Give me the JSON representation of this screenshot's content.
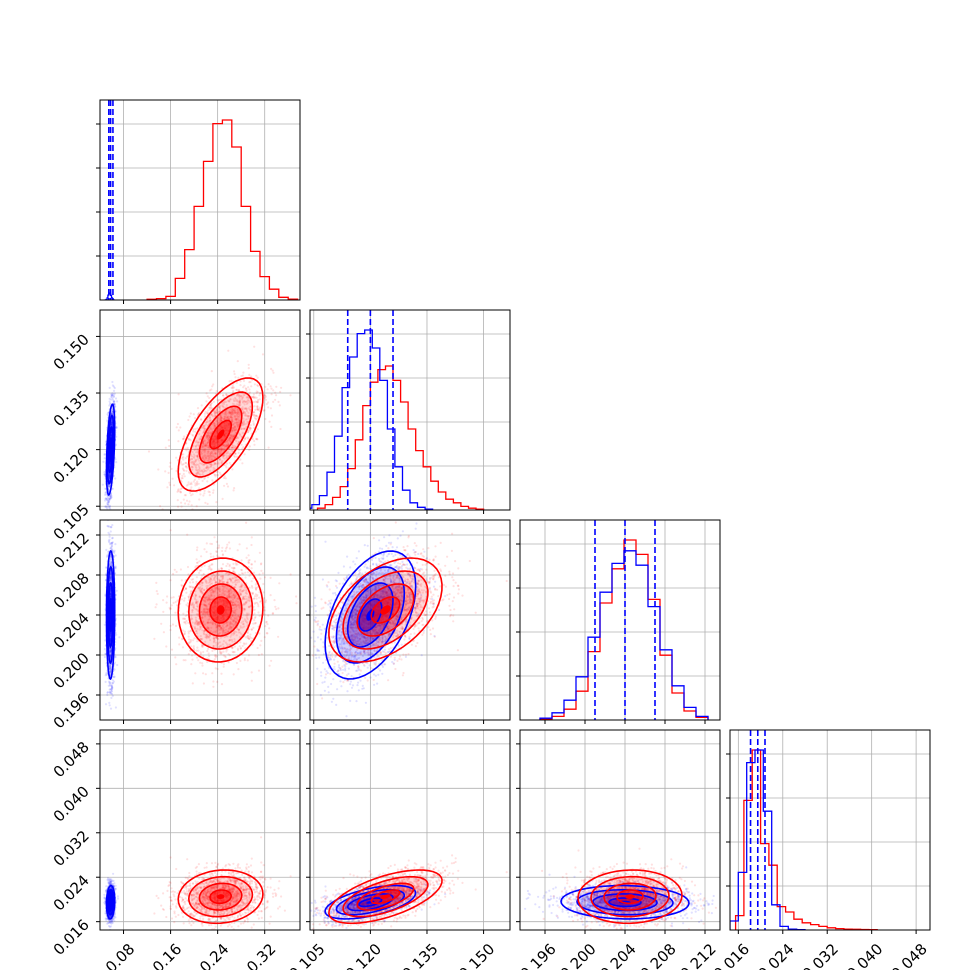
{
  "chart_data": {
    "type": "scatter",
    "variant": "corner-plot",
    "title": "",
    "grid": true,
    "series": [
      {
        "color": "#0000ff"
      },
      {
        "color": "#ff0000"
      }
    ],
    "parameters": [
      {
        "range": [
          0.04,
          0.38
        ],
        "ticks": [
          "0.08",
          "0.16",
          "0.24",
          "0.32"
        ],
        "tick_values": [
          0.08,
          0.16,
          0.24,
          0.32
        ]
      },
      {
        "range": [
          0.104,
          0.157
        ],
        "ticks": [
          "0.105",
          "0.120",
          "0.135",
          "0.150"
        ],
        "tick_values": [
          0.105,
          0.12,
          0.135,
          0.15
        ]
      },
      {
        "range": [
          0.1935,
          0.2135
        ],
        "ticks": [
          "0.196",
          "0.200",
          "0.204",
          "0.208",
          "0.212"
        ],
        "tick_values": [
          0.196,
          0.2,
          0.204,
          0.208,
          0.212
        ]
      },
      {
        "range": [
          0.0145,
          0.0505
        ],
        "ticks": [
          "0.016",
          "0.024",
          "0.032",
          "0.040",
          "0.048"
        ],
        "tick_values": [
          0.016,
          0.024,
          0.032,
          0.04,
          0.048
        ]
      }
    ],
    "marginals": [
      {
        "quantile_lines": [
          0.055,
          0.058,
          0.062
        ],
        "blue_hist": {
          "edges": [
            0.049,
            0.0505,
            0.052,
            0.0535,
            0.055,
            0.0565,
            0.058,
            0.0595,
            0.061,
            0.0625,
            0.064
          ],
          "counts": [
            0.02,
            0.08,
            0.3,
            0.7,
            1.0,
            0.95,
            0.65,
            0.3,
            0.08,
            0.02
          ]
        },
        "red_hist": {
          "edges": [
            0.12,
            0.136,
            0.152,
            0.168,
            0.184,
            0.2,
            0.216,
            0.232,
            0.248,
            0.264,
            0.28,
            0.296,
            0.312,
            0.328,
            0.344,
            0.36,
            0.376
          ],
          "counts": [
            0.004,
            0.008,
            0.02,
            0.12,
            0.28,
            0.52,
            0.77,
            0.98,
            1.0,
            0.85,
            0.52,
            0.27,
            0.13,
            0.06,
            0.015,
            0.005
          ]
        }
      },
      {
        "quantile_lines": [
          0.114,
          0.12,
          0.126
        ],
        "blue_hist": {
          "edges": [
            0.1025,
            0.1045,
            0.1065,
            0.1085,
            0.1105,
            0.1125,
            0.1145,
            0.1165,
            0.1185,
            0.1205,
            0.1225,
            0.1245,
            0.1265,
            0.1285,
            0.1305,
            0.1325,
            0.1345,
            0.1365
          ],
          "counts": [
            0.01,
            0.03,
            0.08,
            0.21,
            0.41,
            0.68,
            0.85,
            0.98,
            1.0,
            0.9,
            0.72,
            0.45,
            0.24,
            0.11,
            0.04,
            0.015,
            0.005
          ]
        },
        "red_hist": {
          "edges": [
            0.106,
            0.108,
            0.11,
            0.112,
            0.114,
            0.116,
            0.118,
            0.12,
            0.122,
            0.124,
            0.126,
            0.128,
            0.13,
            0.132,
            0.134,
            0.136,
            0.138,
            0.14,
            0.142,
            0.144,
            0.146,
            0.148,
            0.15
          ],
          "counts": [
            0.01,
            0.03,
            0.07,
            0.13,
            0.23,
            0.39,
            0.58,
            0.71,
            0.78,
            0.8,
            0.72,
            0.6,
            0.45,
            0.33,
            0.24,
            0.16,
            0.1,
            0.06,
            0.04,
            0.02,
            0.01,
            0.005
          ]
        }
      },
      {
        "quantile_lines": [
          0.201,
          0.204,
          0.207
        ],
        "blue_hist": {
          "edges": [
            0.1955,
            0.1967,
            0.1979,
            0.1991,
            0.2003,
            0.2015,
            0.2027,
            0.2039,
            0.2051,
            0.2063,
            0.2075,
            0.2087,
            0.2099,
            0.2111,
            0.2123
          ],
          "counts": [
            0.01,
            0.04,
            0.11,
            0.24,
            0.46,
            0.71,
            0.87,
            0.94,
            0.86,
            0.63,
            0.39,
            0.19,
            0.07,
            0.02
          ]
        },
        "red_hist": {
          "edges": [
            0.1955,
            0.1967,
            0.1979,
            0.1991,
            0.2003,
            0.2015,
            0.2027,
            0.2039,
            0.2051,
            0.2063,
            0.2075,
            0.2087,
            0.2099,
            0.2111,
            0.2123
          ],
          "counts": [
            0.005,
            0.02,
            0.06,
            0.16,
            0.38,
            0.65,
            0.84,
            1.0,
            0.92,
            0.67,
            0.36,
            0.15,
            0.05,
            0.015
          ]
        }
      },
      {
        "quantile_lines": [
          0.0182,
          0.0195,
          0.0208
        ],
        "blue_hist": {
          "edges": [
            0.0145,
            0.016,
            0.0175,
            0.019,
            0.0205,
            0.022,
            0.0235,
            0.025,
            0.0265,
            0.028
          ],
          "counts": [
            0.05,
            0.32,
            0.93,
            1.0,
            0.66,
            0.14,
            0.02,
            0.005,
            0.002
          ]
        },
        "red_hist": {
          "edges": [
            0.0155,
            0.017,
            0.0185,
            0.02,
            0.0215,
            0.023,
            0.0245,
            0.026,
            0.0275,
            0.029,
            0.0305,
            0.032,
            0.0335,
            0.035,
            0.0365,
            0.038,
            0.0395,
            0.041
          ],
          "counts": [
            0.08,
            0.72,
            1.0,
            0.48,
            0.36,
            0.13,
            0.1,
            0.06,
            0.04,
            0.03,
            0.02,
            0.012,
            0.008,
            0.005,
            0.004,
            0.003,
            0.002
          ]
        }
      }
    ],
    "distributions": {
      "blue": {
        "means": [
          0.058,
          0.12,
          0.204,
          0.0195
        ],
        "stds": [
          0.0035,
          0.006,
          0.0032,
          0.0015
        ]
      },
      "red": {
        "means": [
          0.245,
          0.124,
          0.2045,
          0.0205
        ],
        "stds": [
          0.036,
          0.0075,
          0.0026,
          0.0024
        ]
      }
    }
  }
}
